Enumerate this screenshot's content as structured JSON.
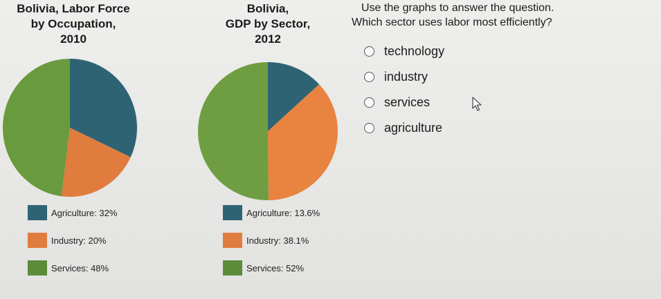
{
  "left_chart": {
    "title_lines": [
      "Bolivia, Labor Force",
      "by Occupation,",
      "2010"
    ],
    "legend": [
      {
        "label": "Agriculture: 32%",
        "color": "#2e6374"
      },
      {
        "label": "Industry: 20%",
        "color": "#e07c3e"
      },
      {
        "label": "Services: 48%",
        "color": "#5c8c3a"
      }
    ]
  },
  "right_chart": {
    "title_lines": [
      "Bolivia,",
      "GDP by Sector,",
      "2012"
    ],
    "legend": [
      {
        "label": "Agriculture: 13.6%",
        "color": "#2e6374"
      },
      {
        "label": "Industry: 38.1%",
        "color": "#e07c3e"
      },
      {
        "label": "Services: 52%",
        "color": "#5c8c3a"
      }
    ]
  },
  "question": {
    "line1": "Use the graphs to answer the question.",
    "line2": "Which sector uses labor most efficiently?",
    "options": [
      "technology",
      "industry",
      "services",
      "agriculture"
    ]
  },
  "chart_data": [
    {
      "type": "pie",
      "title": "Bolivia, Labor Force by Occupation, 2010",
      "categories": [
        "Agriculture",
        "Industry",
        "Services"
      ],
      "values": [
        32,
        20,
        48
      ],
      "colors": [
        "#2e6374",
        "#e07c3e",
        "#6a9a3e"
      ]
    },
    {
      "type": "pie",
      "title": "Bolivia, GDP by Sector, 2012",
      "categories": [
        "Agriculture",
        "Industry",
        "Services"
      ],
      "values": [
        13.6,
        38.1,
        52
      ],
      "colors": [
        "#2e6374",
        "#e8843f",
        "#6f9e42"
      ]
    }
  ]
}
